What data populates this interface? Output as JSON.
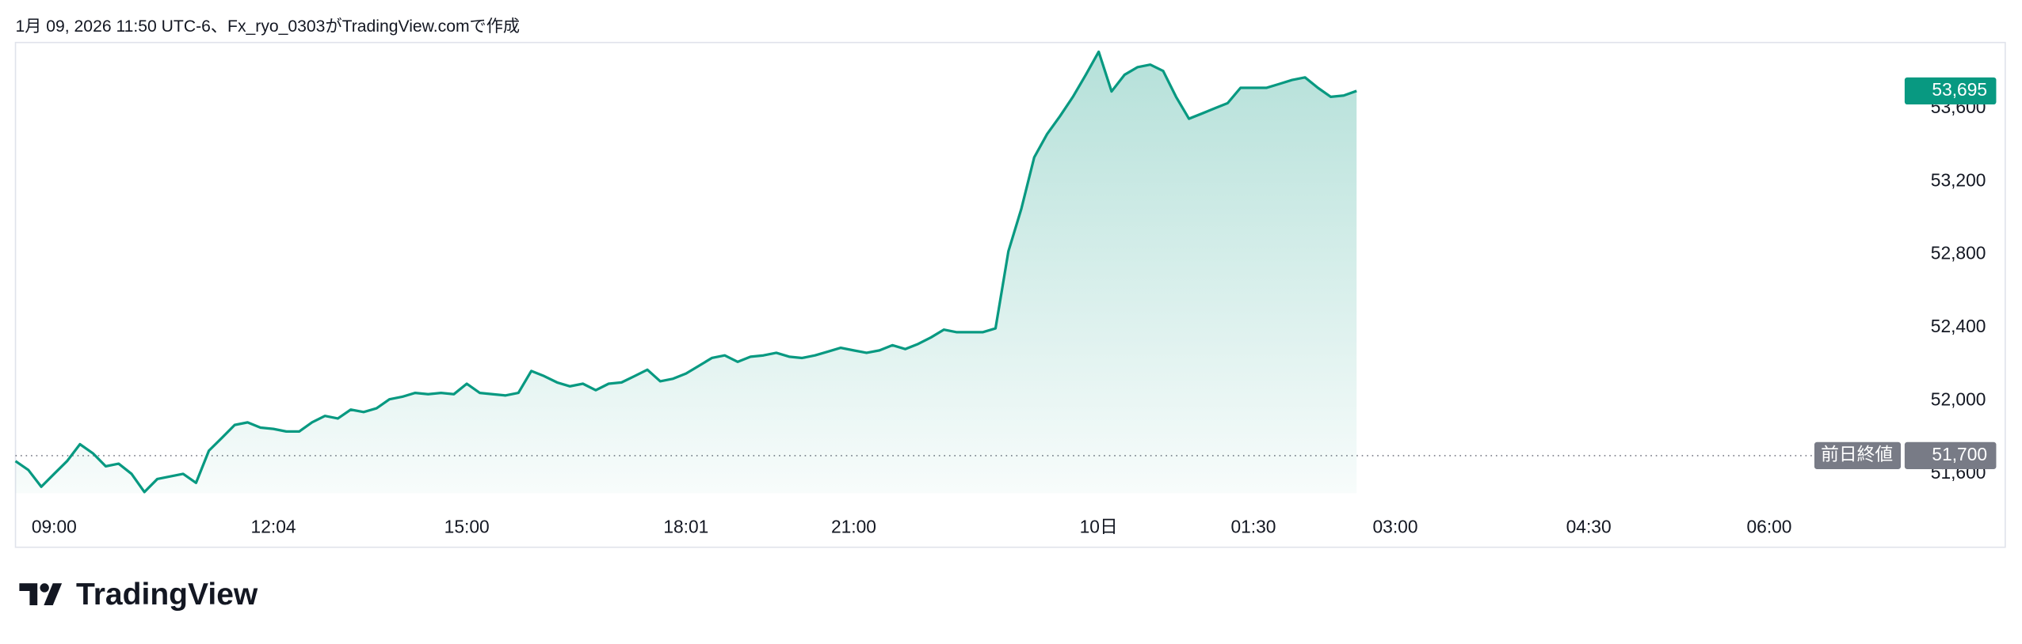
{
  "header": "1月 09, 2026 11:50 UTC-6、Fx_ryo_0303がTradingView.comで作成",
  "brand": "TradingView",
  "chart_data": {
    "type": "area",
    "color": "#089981",
    "categories": [
      null,
      null,
      null,
      "09:00",
      null,
      null,
      null,
      null,
      null,
      null,
      null,
      null,
      null,
      null,
      null,
      null,
      null,
      null,
      null,
      null,
      "12:04",
      null,
      null,
      null,
      null,
      null,
      null,
      null,
      null,
      null,
      null,
      null,
      null,
      null,
      null,
      "15:00",
      null,
      null,
      null,
      null,
      null,
      null,
      null,
      null,
      null,
      null,
      null,
      null,
      null,
      null,
      null,
      null,
      "18:01",
      null,
      null,
      null,
      null,
      null,
      null,
      null,
      null,
      null,
      null,
      null,
      null,
      "21:00",
      null,
      null,
      null,
      null,
      null,
      null,
      null,
      null,
      null,
      null,
      null,
      null,
      null,
      null,
      null,
      null,
      null,
      null,
      "10日",
      null,
      null,
      null,
      null,
      null,
      null,
      null,
      null,
      null,
      null,
      null,
      "01:30",
      null,
      null,
      null,
      null,
      null,
      null,
      null,
      null,
      null,
      null,
      "03:00",
      null,
      null,
      null,
      null,
      null,
      null,
      null,
      null,
      null,
      null,
      null,
      null,
      null,
      null,
      "04:30",
      null,
      null,
      null,
      null,
      null,
      null,
      null,
      null,
      null,
      null,
      null,
      null,
      null,
      "06:00",
      null,
      null,
      null
    ],
    "values": [
      51670,
      51621,
      51530,
      51600,
      51670,
      51762,
      51713,
      51642,
      51656,
      51600,
      51501,
      51572,
      51586,
      51600,
      51551,
      51727,
      51797,
      51868,
      51882,
      51853,
      51846,
      51832,
      51832,
      51882,
      51917,
      51903,
      51952,
      51938,
      51959,
      52008,
      52022,
      52043,
      52036,
      52043,
      52036,
      52093,
      52043,
      52036,
      52029,
      52043,
      52163,
      52135,
      52100,
      52079,
      52093,
      52058,
      52093,
      52100,
      52135,
      52170,
      52107,
      52121,
      52149,
      52191,
      52234,
      52248,
      52213,
      52241,
      52248,
      52262,
      52241,
      52234,
      52248,
      52269,
      52290,
      52276,
      52262,
      52276,
      52304,
      52283,
      52311,
      52347,
      52389,
      52375,
      52375,
      52375,
      52396,
      52818,
      53050,
      53332,
      53459,
      53557,
      53663,
      53783,
      53909,
      53692,
      53783,
      53825,
      53839,
      53804,
      53663,
      53543,
      53571,
      53600,
      53628,
      53712,
      53712,
      53712,
      53733,
      53755,
      53769,
      53712,
      53663,
      53670,
      53695,
      null,
      null,
      null,
      null,
      null,
      null,
      null,
      null,
      null,
      null,
      null,
      null,
      null,
      null,
      null,
      null,
      null,
      null,
      null,
      null,
      null,
      null,
      null,
      null,
      null,
      null,
      null,
      null,
      null,
      null,
      null,
      null,
      null,
      null,
      null
    ],
    "ylim": [
      51410,
      53960
    ],
    "yticks": [
      {
        "value": 51600,
        "label": "51,600"
      },
      {
        "value": 52000,
        "label": "52,000"
      },
      {
        "value": 52400,
        "label": "52,400"
      },
      {
        "value": 52800,
        "label": "52,800"
      },
      {
        "value": 53200,
        "label": "53,200"
      },
      {
        "value": 53600,
        "label": "53,600"
      }
    ],
    "last_price": {
      "value": 53695,
      "label": "53,695"
    },
    "prev_close": {
      "name": "前日終値",
      "value": 51700,
      "label": "51,700"
    }
  }
}
